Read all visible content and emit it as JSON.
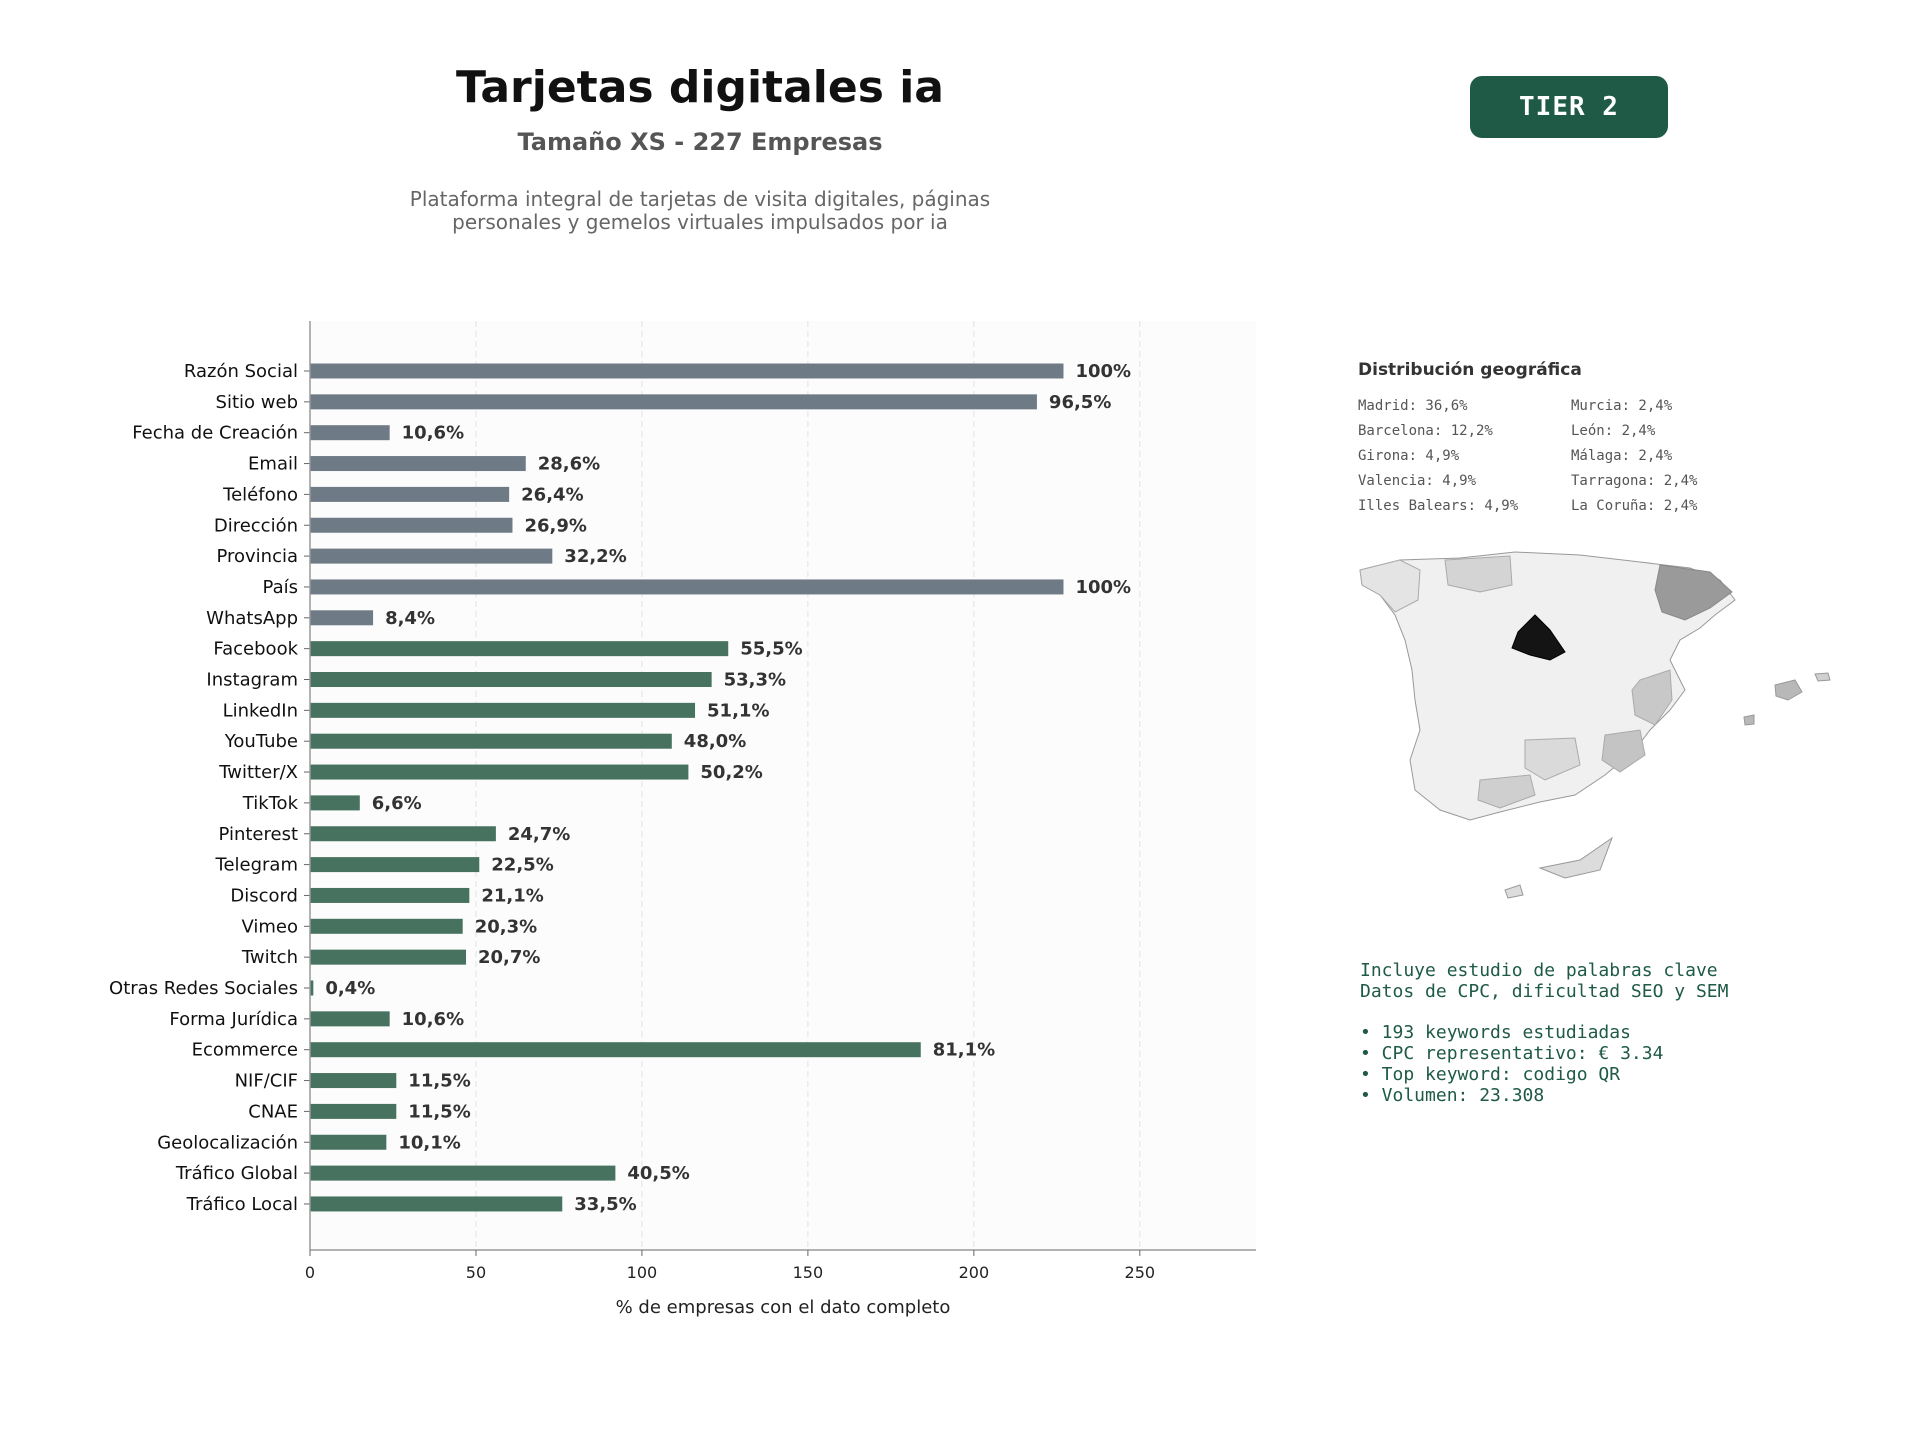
{
  "header": {
    "title": "Tarjetas digitales ia",
    "subtitle": "Tamaño XS - 227 Empresas",
    "description_line1": "Plataforma integral de tarjetas de visita digitales, páginas",
    "description_line2": "personales y gemelos virtuales impulsados por ia",
    "tier": "TIER 2"
  },
  "colors": {
    "gray_bar": "#6e7a85",
    "green_bar": "#46725f",
    "brand": "#1e5a45"
  },
  "chart_data": {
    "type": "bar",
    "orientation": "horizontal",
    "total_companies": 227,
    "categories": [
      "Razón Social",
      "Sitio web",
      "Fecha de Creación",
      "Email",
      "Teléfono",
      "Dirección",
      "Provincia",
      "País",
      "WhatsApp",
      "Facebook",
      "Instagram",
      "LinkedIn",
      "YouTube",
      "Twitter/X",
      "TikTok",
      "Pinterest",
      "Telegram",
      "Discord",
      "Vimeo",
      "Twitch",
      "Otras Redes Sociales",
      "Forma Jurídica",
      "Ecommerce",
      "NIF/CIF",
      "CNAE",
      "Geolocalización",
      "Tráfico Global",
      "Tráfico Local"
    ],
    "values": [
      227,
      219,
      24,
      65,
      60,
      61,
      73,
      227,
      19,
      126,
      121,
      116,
      109,
      114,
      15,
      56,
      51,
      48,
      46,
      47,
      1,
      24,
      184,
      26,
      26,
      23,
      92,
      76
    ],
    "labels": [
      "100%",
      "96,5%",
      "10,6%",
      "28,6%",
      "26,4%",
      "26,9%",
      "32,2%",
      "100%",
      "8,4%",
      "55,5%",
      "53,3%",
      "51,1%",
      "48,0%",
      "50,2%",
      "6,6%",
      "24,7%",
      "22,5%",
      "21,1%",
      "20,3%",
      "20,7%",
      "0,4%",
      "10,6%",
      "81,1%",
      "11,5%",
      "11,5%",
      "10,1%",
      "40,5%",
      "33,5%"
    ],
    "groups": [
      "gray",
      "gray",
      "gray",
      "gray",
      "gray",
      "gray",
      "gray",
      "gray",
      "gray",
      "green",
      "green",
      "green",
      "green",
      "green",
      "green",
      "green",
      "green",
      "green",
      "green",
      "green",
      "green",
      "green",
      "green",
      "green",
      "green",
      "green",
      "green",
      "green"
    ],
    "xlabel": "% de empresas con el dato completo",
    "xlim": [
      0,
      285
    ],
    "xticks": [
      0,
      50,
      100,
      150,
      200,
      250
    ],
    "grid": true
  },
  "geo": {
    "title": "Distribución geográfica",
    "items": [
      "Madrid: 36,6%",
      "Murcia: 2,4%",
      "Barcelona: 12,2%",
      "León: 2,4%",
      "Girona: 4,9%",
      "Málaga: 2,4%",
      "Valencia: 4,9%",
      "Tarragona: 2,4%",
      "Illes Balears: 4,9%",
      "La Coruña: 2,4%"
    ]
  },
  "notes": {
    "line1": "Incluye estudio de palabras clave",
    "line2": "Datos de CPC, dificultad SEO y SEM",
    "bullets": [
      "• 193 keywords estudiadas",
      "• CPC representativo: € 3.34",
      "• Top keyword: codigo QR",
      "• Volumen: 23.308"
    ]
  }
}
